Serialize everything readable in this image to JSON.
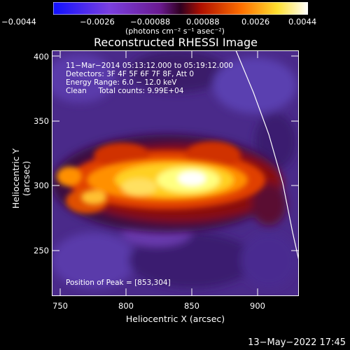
{
  "colorbar": {
    "tick_labels": [
      "−0.0044",
      "−0.0026",
      "−0.00088",
      "0.00088",
      "0.0026",
      "0.0044"
    ],
    "units": "(photons cm⁻² s⁻¹ asec⁻²)",
    "colors": [
      "#1010ff",
      "#8a3fd8",
      "#6a1a90",
      "#c01800",
      "#ff8000",
      "#ffff40",
      "#ffffff"
    ]
  },
  "title": "Reconstructed RHESSI Image",
  "info": {
    "time_range": "11−Mar−2014 05:13:12.000 to 05:19:12.000",
    "detectors": "Detectors: 3F 4F 5F 6F 7F 8F, Att 0",
    "energy": "Energy Range: 6.0 − 12.0 keV",
    "clean": "Clean     Total counts: 9.99E+04",
    "peak": "Position of Peak = [853,304]"
  },
  "axes": {
    "xlabel": "Heliocentric X (arcsec)",
    "ylabel": "Heliocentric Y (arcsec)",
    "x_ticks": [
      "750",
      "800",
      "850",
      "900"
    ],
    "y_ticks": [
      "250",
      "300",
      "350",
      "400"
    ]
  },
  "footer_date": "13−May−2022 17:45"
}
